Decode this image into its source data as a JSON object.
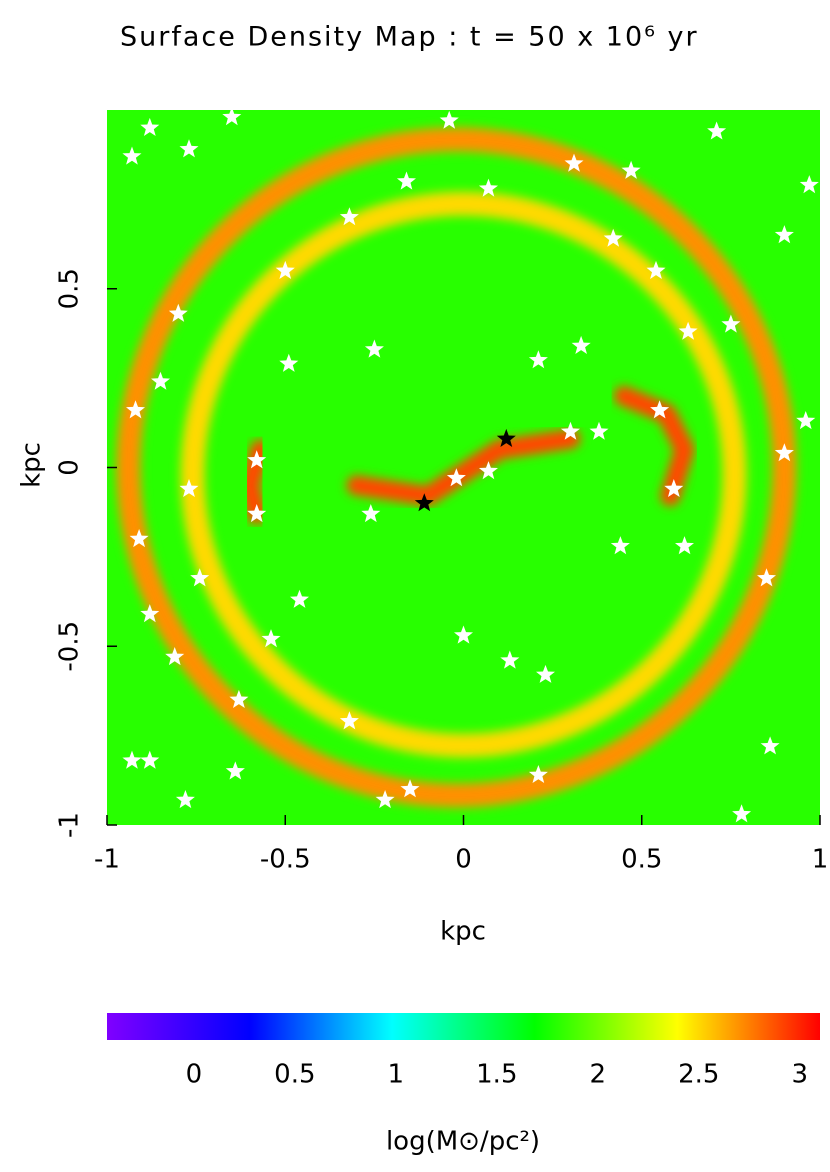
{
  "chart_data": {
    "type": "density_map",
    "title": "Surface Density Map : t = 50 x 10⁶ yr",
    "xlabel": "kpc",
    "ylabel": "kpc",
    "xlim": [
      -1,
      1
    ],
    "ylim": [
      -1,
      1
    ],
    "xticks": [
      -1,
      -0.5,
      0,
      0.5,
      1
    ],
    "yticks": [
      -1,
      -0.5,
      0,
      0.5
    ],
    "colormap": [
      "#8000ff",
      "#0000ff",
      "#00ffff",
      "#00ff00",
      "#ffff00",
      "#ff0000"
    ],
    "clim": [
      -0.43,
      3.1
    ],
    "cticks": [
      0,
      0.5,
      1,
      1.5,
      2,
      2.5,
      3
    ],
    "colorbar_label": "log(M⊙/pc²)",
    "density": {
      "background": 1.8,
      "rings": [
        {
          "center": [
            -0.02,
            0
          ],
          "radius": 0.92,
          "value": 2.7
        },
        {
          "center": [
            0,
            -0.02
          ],
          "radius": 0.76,
          "value": 2.5
        }
      ],
      "arms": [
        {
          "x": [
            -0.57,
            -0.6,
            -0.58
          ],
          "y": [
            0.05,
            -0.05,
            -0.13
          ],
          "value": 2.9
        },
        {
          "x": [
            -0.3,
            -0.1,
            0.1,
            0.3
          ],
          "y": [
            -0.05,
            -0.08,
            0.05,
            0.08
          ],
          "value": 2.9
        },
        {
          "x": [
            0.45,
            0.57,
            0.62,
            0.58
          ],
          "y": [
            0.2,
            0.15,
            0.05,
            -0.08
          ],
          "value": 2.9
        }
      ]
    },
    "stars": {
      "color": "#ffffff",
      "x": [
        -0.88,
        -0.65,
        -0.93,
        -0.77,
        -0.32,
        -0.16,
        -0.04,
        0.07,
        0.31,
        0.47,
        0.71,
        0.9,
        0.97,
        0.54,
        0.63,
        0.75,
        -0.5,
        -0.8,
        -0.85,
        -0.92,
        -0.77,
        -0.91,
        -0.74,
        -0.88,
        -0.81,
        -0.93,
        -0.88,
        -0.78,
        -0.54,
        -0.63,
        -0.46,
        -0.32,
        -0.22,
        -0.15,
        0.0,
        0.13,
        0.23,
        0.44,
        0.62,
        0.78,
        0.85,
        0.9,
        0.96,
        -0.58,
        -0.58,
        -0.26,
        -0.02,
        0.07,
        0.3,
        0.38,
        0.55,
        0.59,
        -0.49,
        -0.25,
        0.21,
        0.33,
        0.42,
        -0.64,
        0.21,
        0.86
      ],
      "y": [
        0.95,
        0.98,
        0.87,
        0.89,
        0.7,
        0.8,
        0.97,
        0.78,
        0.85,
        0.83,
        0.94,
        0.65,
        0.79,
        0.55,
        0.38,
        0.4,
        0.55,
        0.43,
        0.24,
        0.16,
        -0.06,
        -0.2,
        -0.31,
        -0.41,
        -0.53,
        -0.82,
        -0.82,
        -0.93,
        -0.48,
        -0.65,
        -0.37,
        -0.71,
        -0.93,
        -0.9,
        -0.47,
        -0.54,
        -0.58,
        -0.22,
        -0.22,
        -0.97,
        -0.31,
        0.04,
        0.13,
        0.02,
        -0.13,
        -0.13,
        -0.03,
        -0.01,
        0.1,
        0.1,
        0.16,
        -0.06,
        0.29,
        0.33,
        0.3,
        0.34,
        0.64,
        -0.85,
        -0.86,
        -0.78
      ]
    },
    "marked_stars": {
      "color": "#000000",
      "x": [
        -0.11,
        0.12
      ],
      "y": [
        -0.1,
        0.08
      ]
    }
  }
}
